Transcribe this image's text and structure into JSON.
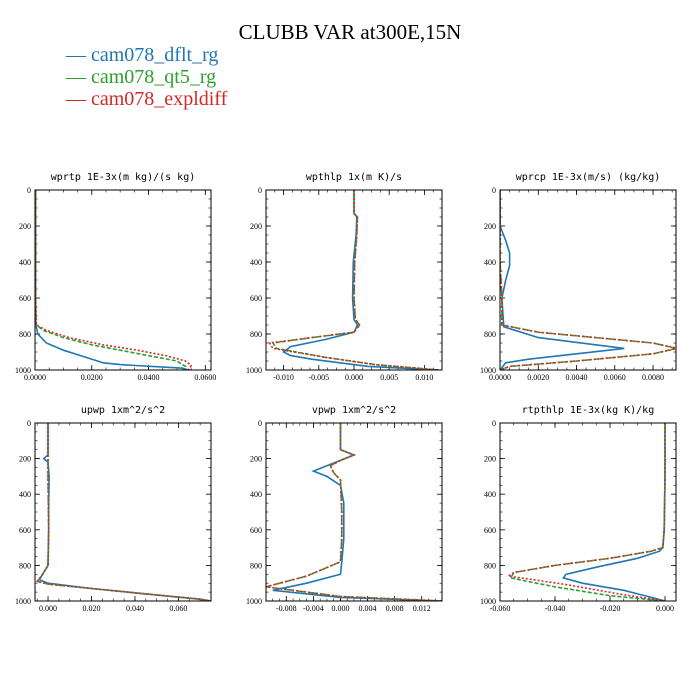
{
  "figure": {
    "title": "CLUBB VAR at300E,15N"
  },
  "legend": [
    {
      "label": "cam078_dflt_rg",
      "color": "#1f77b4"
    },
    {
      "label": "cam078_qt5_rg",
      "color": "#2ca02c"
    },
    {
      "label": "cam078_expldiff",
      "color": "#d62728"
    }
  ],
  "chart_data": [
    {
      "type": "line",
      "title": "wprtp  1E-3x(m kg)/(s kg)",
      "xlim": [
        0,
        0.062
      ],
      "ylim": [
        1000,
        0
      ],
      "xticks": [
        0,
        0.02,
        0.04,
        0.06
      ],
      "xtick_labels": [
        "0.0000",
        "0.0200",
        "0.0400",
        "0.0600"
      ],
      "yticks": [
        0,
        200,
        400,
        600,
        800,
        1000
      ],
      "series": [
        {
          "name": "cam078_dflt_rg",
          "x": [
            0.0002,
            0.0002,
            0.0003,
            0.001,
            0.004,
            0.01,
            0.018,
            0.022,
            0.024,
            0.03,
            0.052,
            0.054
          ],
          "y": [
            0,
            600,
            750,
            800,
            850,
            890,
            930,
            950,
            960,
            970,
            990,
            1000
          ]
        },
        {
          "name": "cam078_qt5_rg",
          "x": [
            0.0002,
            0.0002,
            0.0004,
            0.003,
            0.01,
            0.02,
            0.03,
            0.04,
            0.05,
            0.053,
            0.052
          ],
          "y": [
            0,
            600,
            750,
            780,
            820,
            860,
            890,
            920,
            950,
            980,
            1000
          ]
        },
        {
          "name": "cam078_expldiff",
          "x": [
            0.0002,
            0.0002,
            0.0005,
            0.004,
            0.012,
            0.024,
            0.036,
            0.046,
            0.053,
            0.055,
            0.054
          ],
          "y": [
            0,
            600,
            750,
            780,
            820,
            860,
            890,
            920,
            950,
            975,
            1000
          ]
        }
      ]
    },
    {
      "type": "line",
      "title": "wpthlp  1x(m K)/s",
      "xlim": [
        -0.0125,
        0.0125
      ],
      "ylim": [
        1000,
        0
      ],
      "xticks": [
        -0.01,
        -0.005,
        0,
        0.005,
        0.01
      ],
      "xtick_labels": [
        "-0.010",
        "-0.005",
        "0.000",
        "0.005",
        "0.010"
      ],
      "yticks": [
        0,
        200,
        400,
        600,
        800,
        1000
      ],
      "series": [
        {
          "name": "cam078_dflt_rg",
          "x": [
            0,
            0,
            0.0004,
            0.0003,
            -0.0001,
            -0.0002,
            0,
            0.0005,
            0,
            -0.004,
            -0.009,
            -0.01,
            -0.009,
            -0.006,
            0.002,
            0.012
          ],
          "y": [
            0,
            130,
            150,
            250,
            400,
            600,
            720,
            750,
            790,
            830,
            870,
            900,
            920,
            940,
            980,
            1000
          ]
        },
        {
          "name": "cam078_qt5_rg",
          "x": [
            0,
            0,
            0.0005,
            0.0004,
            0.0001,
            0,
            0.0002,
            0.0008,
            0,
            -0.006,
            -0.0115,
            -0.011,
            -0.004,
            0.003,
            0.012
          ],
          "y": [
            0,
            130,
            150,
            250,
            400,
            600,
            720,
            750,
            790,
            820,
            850,
            880,
            930,
            970,
            1000
          ]
        },
        {
          "name": "cam078_expldiff",
          "x": [
            0,
            0,
            0.0005,
            0.0004,
            0.0001,
            0,
            0.0002,
            0.0008,
            0,
            -0.006,
            -0.012,
            -0.0115,
            -0.004,
            0.003,
            0.012
          ],
          "y": [
            0,
            130,
            150,
            250,
            400,
            600,
            720,
            750,
            790,
            820,
            850,
            880,
            930,
            970,
            1000
          ]
        }
      ]
    },
    {
      "type": "line",
      "title": "wprcp  1E-3x(m/s) (kg/kg)",
      "xlim": [
        0,
        0.0092
      ],
      "ylim": [
        1000,
        0
      ],
      "xticks": [
        0,
        0.002,
        0.004,
        0.006,
        0.008
      ],
      "xtick_labels": [
        "0.0000",
        "0.0020",
        "0.0040",
        "0.0060",
        "0.0080"
      ],
      "yticks": [
        0,
        200,
        400,
        600,
        800,
        1000
      ],
      "series": [
        {
          "name": "cam078_dflt_rg",
          "x": [
            0,
            0,
            0.0003,
            0.0005,
            0.0005,
            0.0003,
            0.0001,
            0.0002,
            0.002,
            0.005,
            0.0065,
            0.004,
            0.0015,
            0.0003,
            0
          ],
          "y": [
            0,
            200,
            280,
            350,
            420,
            500,
            600,
            760,
            820,
            860,
            880,
            910,
            940,
            960,
            1000
          ]
        },
        {
          "name": "cam078_qt5_rg",
          "x": [
            0,
            0,
            0.0001,
            0.0001,
            0.002,
            0.005,
            0.008,
            0.0092,
            0.008,
            0.004,
            0.0005,
            0
          ],
          "y": [
            0,
            400,
            600,
            750,
            790,
            820,
            850,
            880,
            910,
            950,
            980,
            1000
          ]
        },
        {
          "name": "cam078_expldiff",
          "x": [
            0,
            0,
            0.0001,
            0.0001,
            0.002,
            0.005,
            0.008,
            0.0093,
            0.008,
            0.004,
            0.0005,
            0
          ],
          "y": [
            0,
            400,
            600,
            750,
            790,
            820,
            850,
            880,
            910,
            950,
            980,
            1000
          ]
        }
      ]
    },
    {
      "type": "line",
      "title": "upwp  1xm^2/s^2",
      "xlim": [
        -0.006,
        0.075
      ],
      "ylim": [
        1000,
        0
      ],
      "xticks": [
        0,
        0.02,
        0.04,
        0.06
      ],
      "xtick_labels": [
        "0.000",
        "0.020",
        "0.040",
        "0.060"
      ],
      "yticks": [
        0,
        200,
        400,
        600,
        800,
        1000
      ],
      "series": [
        {
          "name": "cam078_dflt_rg",
          "x": [
            0,
            0,
            -0.002,
            0,
            0.0005,
            0.0003,
            0.0003,
            0,
            -0.003,
            -0.004,
            0,
            0.02,
            0.045,
            0.07,
            0.075
          ],
          "y": [
            0,
            180,
            200,
            220,
            300,
            450,
            600,
            800,
            860,
            880,
            900,
            930,
            960,
            990,
            1000
          ]
        },
        {
          "name": "cam078_qt5_rg",
          "x": [
            0,
            0,
            0,
            0.0003,
            0,
            -0.003,
            -0.005,
            0,
            0.02,
            0.045,
            0.07,
            0.075
          ],
          "y": [
            0,
            180,
            300,
            600,
            800,
            860,
            890,
            905,
            930,
            960,
            990,
            1000
          ]
        },
        {
          "name": "cam078_expldiff",
          "x": [
            0,
            0,
            0,
            0.0003,
            0,
            -0.003,
            -0.005,
            0,
            0.02,
            0.045,
            0.07,
            0.075
          ],
          "y": [
            0,
            180,
            300,
            600,
            800,
            860,
            890,
            905,
            930,
            960,
            990,
            1000
          ]
        }
      ]
    },
    {
      "type": "line",
      "title": "vpwp  1xm^2/s^2",
      "xlim": [
        -0.011,
        0.015
      ],
      "ylim": [
        1000,
        0
      ],
      "xticks": [
        -0.008,
        -0.004,
        0,
        0.004,
        0.008,
        0.012
      ],
      "xtick_labels": [
        "-0.008",
        "-0.004",
        "0.000",
        "0.004",
        "0.008",
        "0.012"
      ],
      "yticks": [
        0,
        200,
        400,
        600,
        800,
        1000
      ],
      "series": [
        {
          "name": "cam078_dflt_rg",
          "x": [
            0,
            0,
            0.002,
            0,
            -0.002,
            -0.004,
            -0.002,
            0,
            0.0005,
            0.0005,
            0.0002,
            0,
            -0.005,
            -0.01,
            0,
            0.015
          ],
          "y": [
            0,
            150,
            180,
            210,
            240,
            270,
            300,
            350,
            450,
            650,
            780,
            850,
            900,
            940,
            980,
            1000
          ]
        },
        {
          "name": "cam078_qt5_rg",
          "x": [
            0,
            0,
            0.002,
            0,
            -0.0015,
            -0.001,
            0,
            0.0002,
            0.0002,
            0,
            -0.005,
            -0.011,
            0,
            0.015
          ],
          "y": [
            0,
            150,
            180,
            210,
            240,
            280,
            320,
            500,
            650,
            780,
            860,
            920,
            975,
            1000
          ]
        },
        {
          "name": "cam078_expldiff",
          "x": [
            0,
            0,
            0.002,
            0,
            -0.0015,
            -0.001,
            0,
            0.0002,
            0.0002,
            0,
            -0.005,
            -0.011,
            0,
            0.015
          ],
          "y": [
            0,
            150,
            180,
            210,
            240,
            280,
            320,
            500,
            650,
            780,
            860,
            920,
            975,
            1000
          ]
        }
      ]
    },
    {
      "type": "line",
      "title": "rtpthlp  1E-3x(kg K)/kg",
      "xlim": [
        -0.06,
        0.004
      ],
      "ylim": [
        1000,
        0
      ],
      "xticks": [
        -0.06,
        -0.04,
        -0.02,
        0
      ],
      "xtick_labels": [
        "-0.060",
        "-0.040",
        "-0.020",
        "0.000"
      ],
      "yticks": [
        0,
        200,
        400,
        600,
        800,
        1000
      ],
      "series": [
        {
          "name": "cam078_dflt_rg",
          "x": [
            0,
            0,
            -0.0003,
            -0.0008,
            -0.002,
            -0.01,
            -0.025,
            -0.036,
            -0.037,
            -0.03,
            -0.015,
            -0.005,
            0
          ],
          "y": [
            0,
            300,
            600,
            700,
            720,
            760,
            810,
            850,
            870,
            900,
            940,
            980,
            1000
          ]
        },
        {
          "name": "cam078_qt5_rg",
          "x": [
            0,
            0,
            -0.0003,
            -0.0008,
            -0.005,
            -0.02,
            -0.04,
            -0.055,
            -0.056,
            -0.05,
            -0.04,
            -0.02,
            0
          ],
          "y": [
            0,
            300,
            600,
            700,
            720,
            760,
            800,
            840,
            870,
            890,
            920,
            970,
            1000
          ]
        },
        {
          "name": "cam078_expldiff",
          "x": [
            0,
            0,
            -0.0003,
            -0.0008,
            -0.005,
            -0.02,
            -0.04,
            -0.055,
            -0.057,
            -0.048,
            -0.035,
            -0.015,
            0
          ],
          "y": [
            0,
            300,
            600,
            700,
            720,
            760,
            800,
            840,
            860,
            880,
            910,
            965,
            1000
          ]
        }
      ]
    }
  ]
}
